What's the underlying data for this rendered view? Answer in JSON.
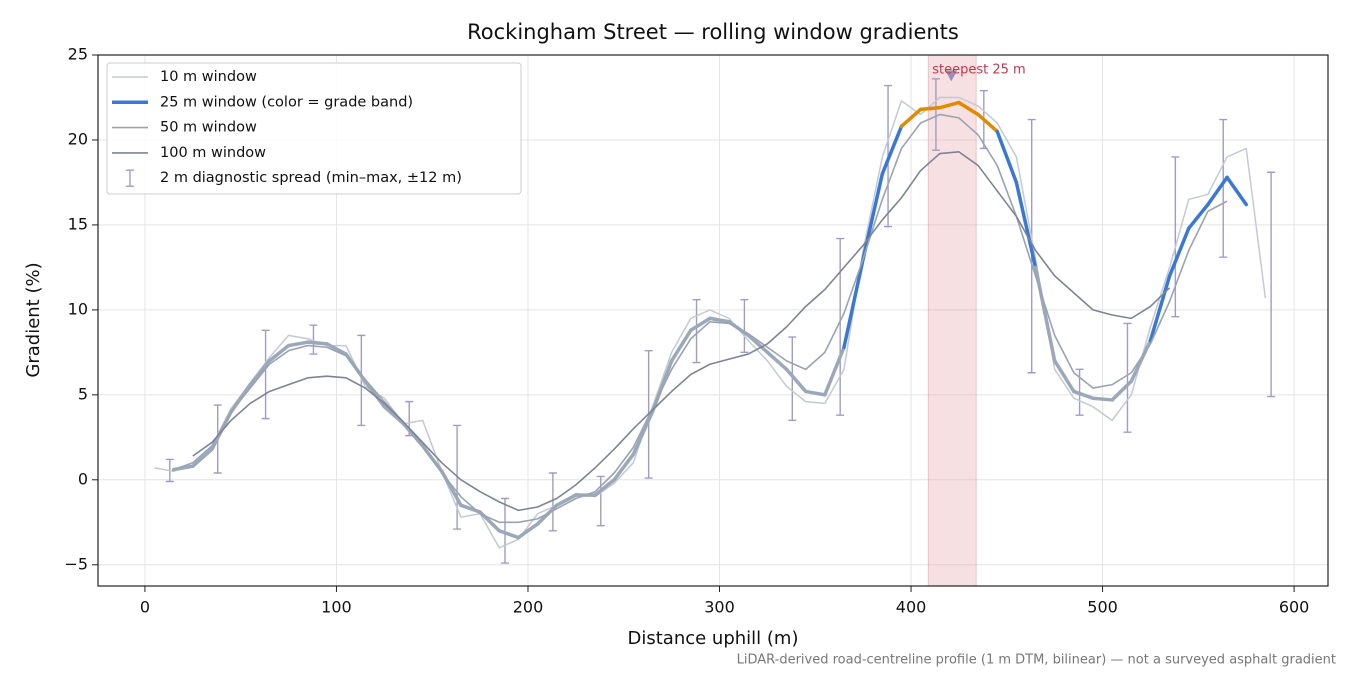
{
  "chart_data": {
    "type": "line",
    "title": "Rockingham Street — rolling window gradients",
    "xlabel": "Distance uphill (m)",
    "ylabel": "Gradient (%)",
    "footnote": "LiDAR-derived road-centreline profile (1 m DTM, bilinear) — not a surveyed asphalt gradient",
    "xlim": [
      -24.5,
      617.7
    ],
    "ylim": [
      -6.25,
      25
    ],
    "xticks": [
      0,
      100,
      200,
      300,
      400,
      500,
      600
    ],
    "yticks": [
      {
        "value": -5,
        "label": "−5"
      },
      0,
      5,
      10,
      15,
      20,
      25
    ],
    "grid": true,
    "legend": "upper left",
    "x": [
      5,
      15,
      25,
      35,
      45,
      55,
      65,
      75,
      85,
      95,
      105,
      115,
      125,
      135,
      145,
      155,
      165,
      175,
      185,
      195,
      205,
      215,
      225,
      235,
      245,
      255,
      265,
      275,
      285,
      295,
      305,
      315,
      325,
      335,
      345,
      355,
      365,
      375,
      385,
      395,
      405,
      415,
      425,
      435,
      445,
      455,
      465,
      475,
      485,
      495,
      505,
      515,
      525,
      535,
      545,
      555,
      565,
      575,
      585
    ],
    "series": [
      {
        "name": "10 m window",
        "color": "#c5c9d3",
        "width": 1.5,
        "values": [
          0.7,
          0.5,
          1.0,
          2.0,
          4.2,
          5.7,
          7.2,
          8.5,
          8.3,
          7.9,
          7.9,
          5.5,
          4.8,
          3.3,
          3.5,
          0.5,
          -2.2,
          -2.0,
          -4.0,
          -3.5,
          -2.0,
          -1.5,
          -0.8,
          -1.0,
          -0.2,
          1.0,
          4.3,
          7.5,
          9.5,
          10.0,
          9.5,
          8.2,
          7.0,
          5.5,
          4.6,
          4.5,
          6.5,
          13.5,
          19.0,
          22.3,
          21.5,
          22.5,
          22.5,
          22.0,
          21.0,
          19.0,
          13.0,
          6.5,
          4.8,
          4.3,
          3.5,
          5.0,
          9.0,
          12.5,
          16.5,
          16.8,
          19.0,
          19.5,
          10.7
        ]
      },
      {
        "name": "25 m window (color = grade band)",
        "color": "#3a78d4",
        "width": 3.5,
        "band_thresholds": [
          10,
          20
        ],
        "band_colors": [
          "#9aa8b9",
          "#3a78d4",
          "#e08a00"
        ],
        "values": [
          null,
          0.6,
          0.8,
          1.8,
          4.0,
          5.6,
          7.0,
          7.9,
          8.1,
          8.0,
          7.4,
          5.8,
          4.3,
          3.3,
          2.0,
          0.5,
          -1.5,
          -1.9,
          -3.0,
          -3.4,
          -2.6,
          -1.5,
          -0.9,
          -0.9,
          0.0,
          1.5,
          4.0,
          7.0,
          8.8,
          9.5,
          9.3,
          8.5,
          7.5,
          6.5,
          5.2,
          5.0,
          7.8,
          13.0,
          18.0,
          20.8,
          21.8,
          21.9,
          22.2,
          21.5,
          20.5,
          17.5,
          12.5,
          7.0,
          5.2,
          4.8,
          4.7,
          5.8,
          8.2,
          12.0,
          14.8,
          16.2,
          17.8,
          16.2,
          null
        ]
      },
      {
        "name": "50 m window",
        "color": "#9aa3b3",
        "width": 1.6,
        "values": [
          null,
          0.6,
          1.0,
          2.0,
          4.0,
          5.4,
          6.8,
          7.6,
          7.9,
          7.8,
          7.3,
          5.9,
          4.6,
          3.4,
          2.0,
          0.4,
          -1.0,
          -2.0,
          -2.5,
          -2.5,
          -2.3,
          -1.7,
          -1.1,
          -0.7,
          0.4,
          1.9,
          4.2,
          6.5,
          8.3,
          9.3,
          9.2,
          8.6,
          7.8,
          7.0,
          6.5,
          7.5,
          9.8,
          13.0,
          16.5,
          19.5,
          21.0,
          21.5,
          21.3,
          20.3,
          18.5,
          15.5,
          12.0,
          8.5,
          6.3,
          5.4,
          5.6,
          6.3,
          8.0,
          10.5,
          13.5,
          15.8,
          16.4,
          null,
          null
        ]
      },
      {
        "name": "100 m window",
        "color": "#7d8494",
        "width": 1.6,
        "values": [
          null,
          null,
          1.4,
          2.2,
          3.5,
          4.5,
          5.2,
          5.6,
          6.0,
          6.1,
          6.0,
          5.4,
          4.5,
          3.4,
          2.2,
          1.0,
          0.0,
          -0.7,
          -1.3,
          -1.8,
          -1.6,
          -1.1,
          -0.3,
          0.7,
          1.8,
          3.0,
          4.1,
          5.2,
          6.2,
          6.8,
          7.1,
          7.4,
          8.0,
          9.0,
          10.2,
          11.2,
          12.5,
          13.8,
          15.3,
          16.6,
          18.2,
          19.2,
          19.3,
          18.5,
          17.0,
          15.5,
          13.5,
          12.0,
          11.0,
          10.0,
          9.7,
          9.5,
          10.2,
          11.3,
          null,
          null,
          null,
          null,
          null
        ]
      }
    ],
    "errorbars": {
      "name": "2 m diagnostic spread (min–max, ±12 m)",
      "color": "#a09cc4",
      "x": [
        13,
        38,
        63,
        88,
        113,
        138,
        163,
        188,
        213,
        238,
        263,
        288,
        313,
        338,
        363,
        388,
        413,
        438,
        463,
        488,
        513,
        538,
        563,
        588
      ],
      "low": [
        -0.1,
        0.4,
        3.6,
        7.4,
        3.2,
        2.6,
        -2.9,
        -4.9,
        -3.0,
        -2.7,
        0.1,
        6.9,
        7.5,
        3.5,
        3.8,
        14.9,
        19.4,
        19.5,
        6.3,
        3.8,
        2.8,
        9.6,
        13.1,
        4.9
      ],
      "high": [
        1.2,
        4.4,
        8.8,
        9.1,
        8.5,
        4.6,
        3.2,
        -1.1,
        0.4,
        0.2,
        7.6,
        10.6,
        10.6,
        8.4,
        14.2,
        23.2,
        23.6,
        22.9,
        21.2,
        6.5,
        9.2,
        19.0,
        21.2,
        18.1
      ]
    },
    "highlight": {
      "span": [
        409,
        434
      ],
      "color": "#e8a0a8",
      "label": "steepest 25 m",
      "label_color": "#c0394a",
      "marker": {
        "x": 421,
        "y": 23.8,
        "color": "#9a8fb8"
      }
    }
  }
}
